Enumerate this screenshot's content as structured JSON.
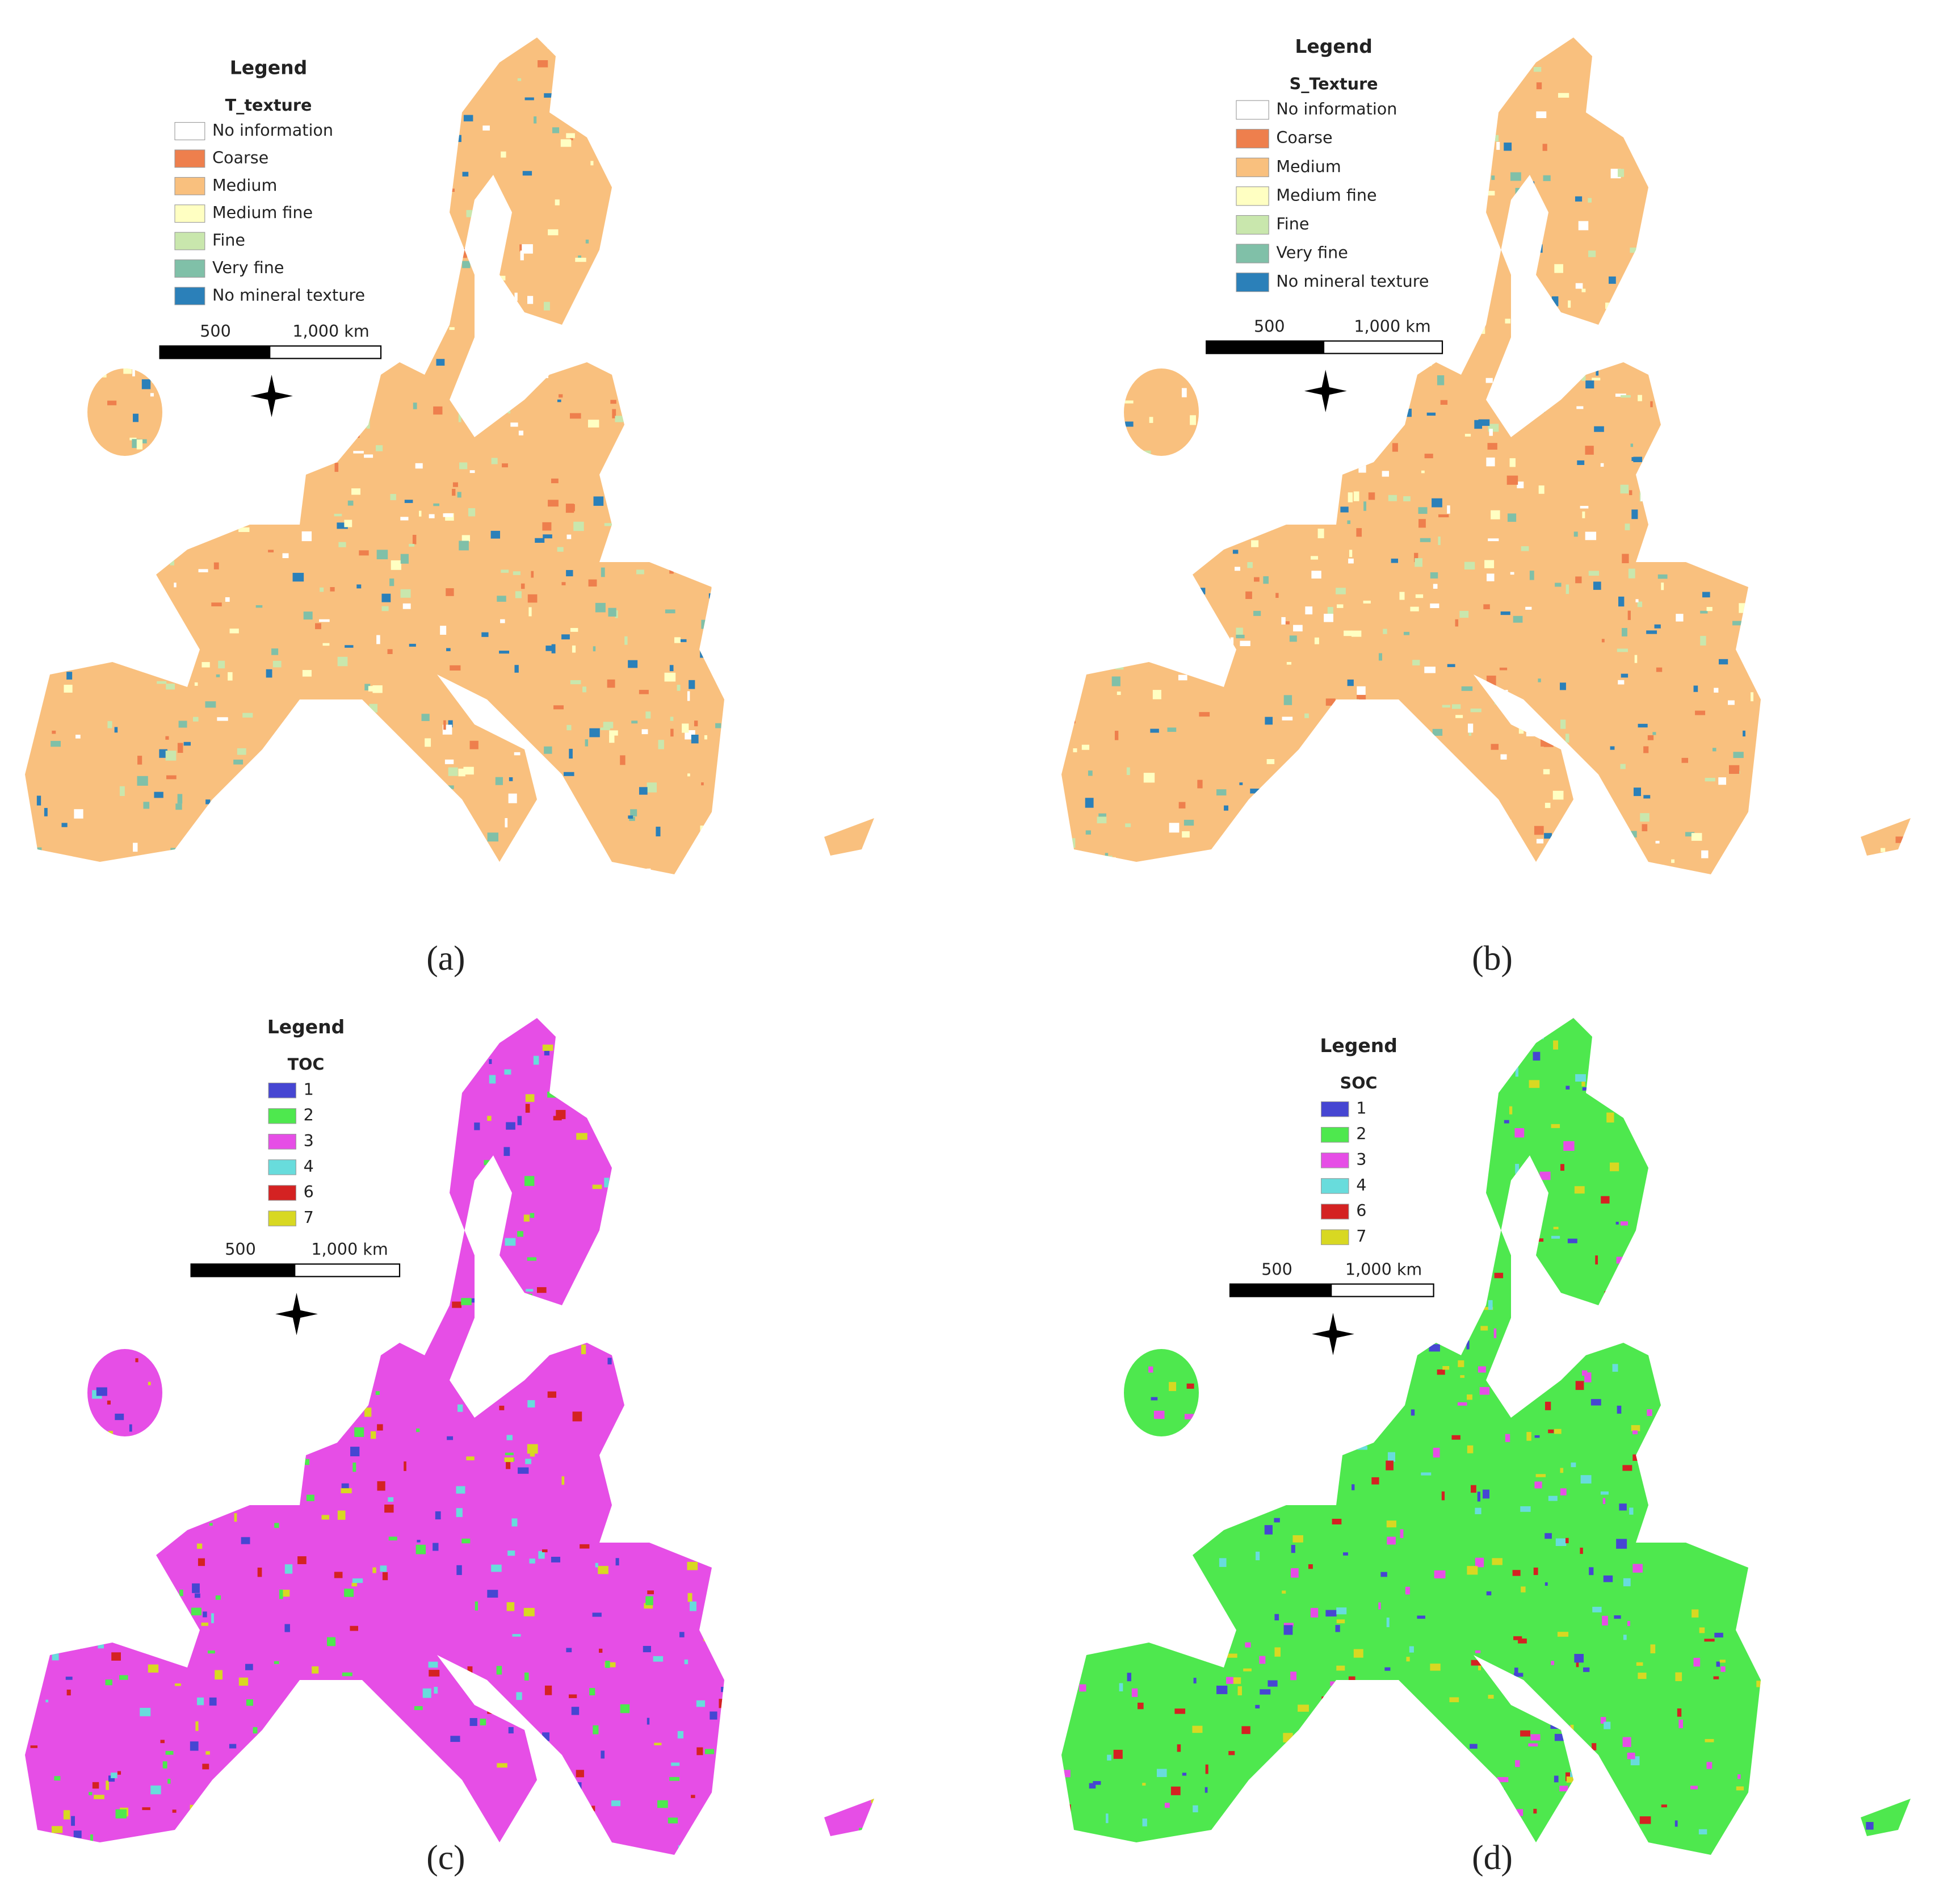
{
  "panels": [
    {
      "legend_title": "Legend",
      "field": "T_texture",
      "items": [
        {
          "label": "No information",
          "color": "#ffffff"
        },
        {
          "label": "Coarse",
          "color": "#ee7f4d"
        },
        {
          "label": "Medium",
          "color": "#f9c07e"
        },
        {
          "label": "Medium fine",
          "color": "#ffffc2"
        },
        {
          "label": "Fine",
          "color": "#c9e7ad"
        },
        {
          "label": "Very fine",
          "color": "#80c0a8"
        },
        {
          "label": "No mineral texture",
          "color": "#2b80b9"
        }
      ],
      "scale_labels": [
        "500",
        "1,000 km"
      ],
      "caption": "(a)"
    },
    {
      "legend_title": "Legend",
      "field": "S_Texture",
      "items": [
        {
          "label": "No information",
          "color": "#ffffff"
        },
        {
          "label": "Coarse",
          "color": "#ee7f4d"
        },
        {
          "label": "Medium",
          "color": "#f9c07e"
        },
        {
          "label": "Medium fine",
          "color": "#ffffc2"
        },
        {
          "label": "Fine",
          "color": "#c9e7ad"
        },
        {
          "label": "Very fine",
          "color": "#80c0a8"
        },
        {
          "label": "No mineral texture",
          "color": "#2b80b9"
        }
      ],
      "scale_labels": [
        "500",
        "1,000 km"
      ],
      "caption": "(b)"
    },
    {
      "legend_title": "Legend",
      "field": "TOC",
      "items": [
        {
          "label": "1",
          "color": "#4646d2"
        },
        {
          "label": "2",
          "color": "#4ee84e"
        },
        {
          "label": "3",
          "color": "#e64ee6"
        },
        {
          "label": "4",
          "color": "#68dcdc"
        },
        {
          "label": "6",
          "color": "#d42222"
        },
        {
          "label": "7",
          "color": "#d8d822"
        }
      ],
      "scale_labels": [
        "500",
        "1,000 km"
      ],
      "caption": "(c)"
    },
    {
      "legend_title": "Legend",
      "field": "SOC",
      "items": [
        {
          "label": "1",
          "color": "#4646d2"
        },
        {
          "label": "2",
          "color": "#4ee84e"
        },
        {
          "label": "3",
          "color": "#e64ee6"
        },
        {
          "label": "4",
          "color": "#68dcdc"
        },
        {
          "label": "6",
          "color": "#d42222"
        },
        {
          "label": "7",
          "color": "#d8d822"
        }
      ],
      "scale_labels": [
        "500",
        "1,000 km"
      ],
      "caption": "(d)"
    }
  ]
}
